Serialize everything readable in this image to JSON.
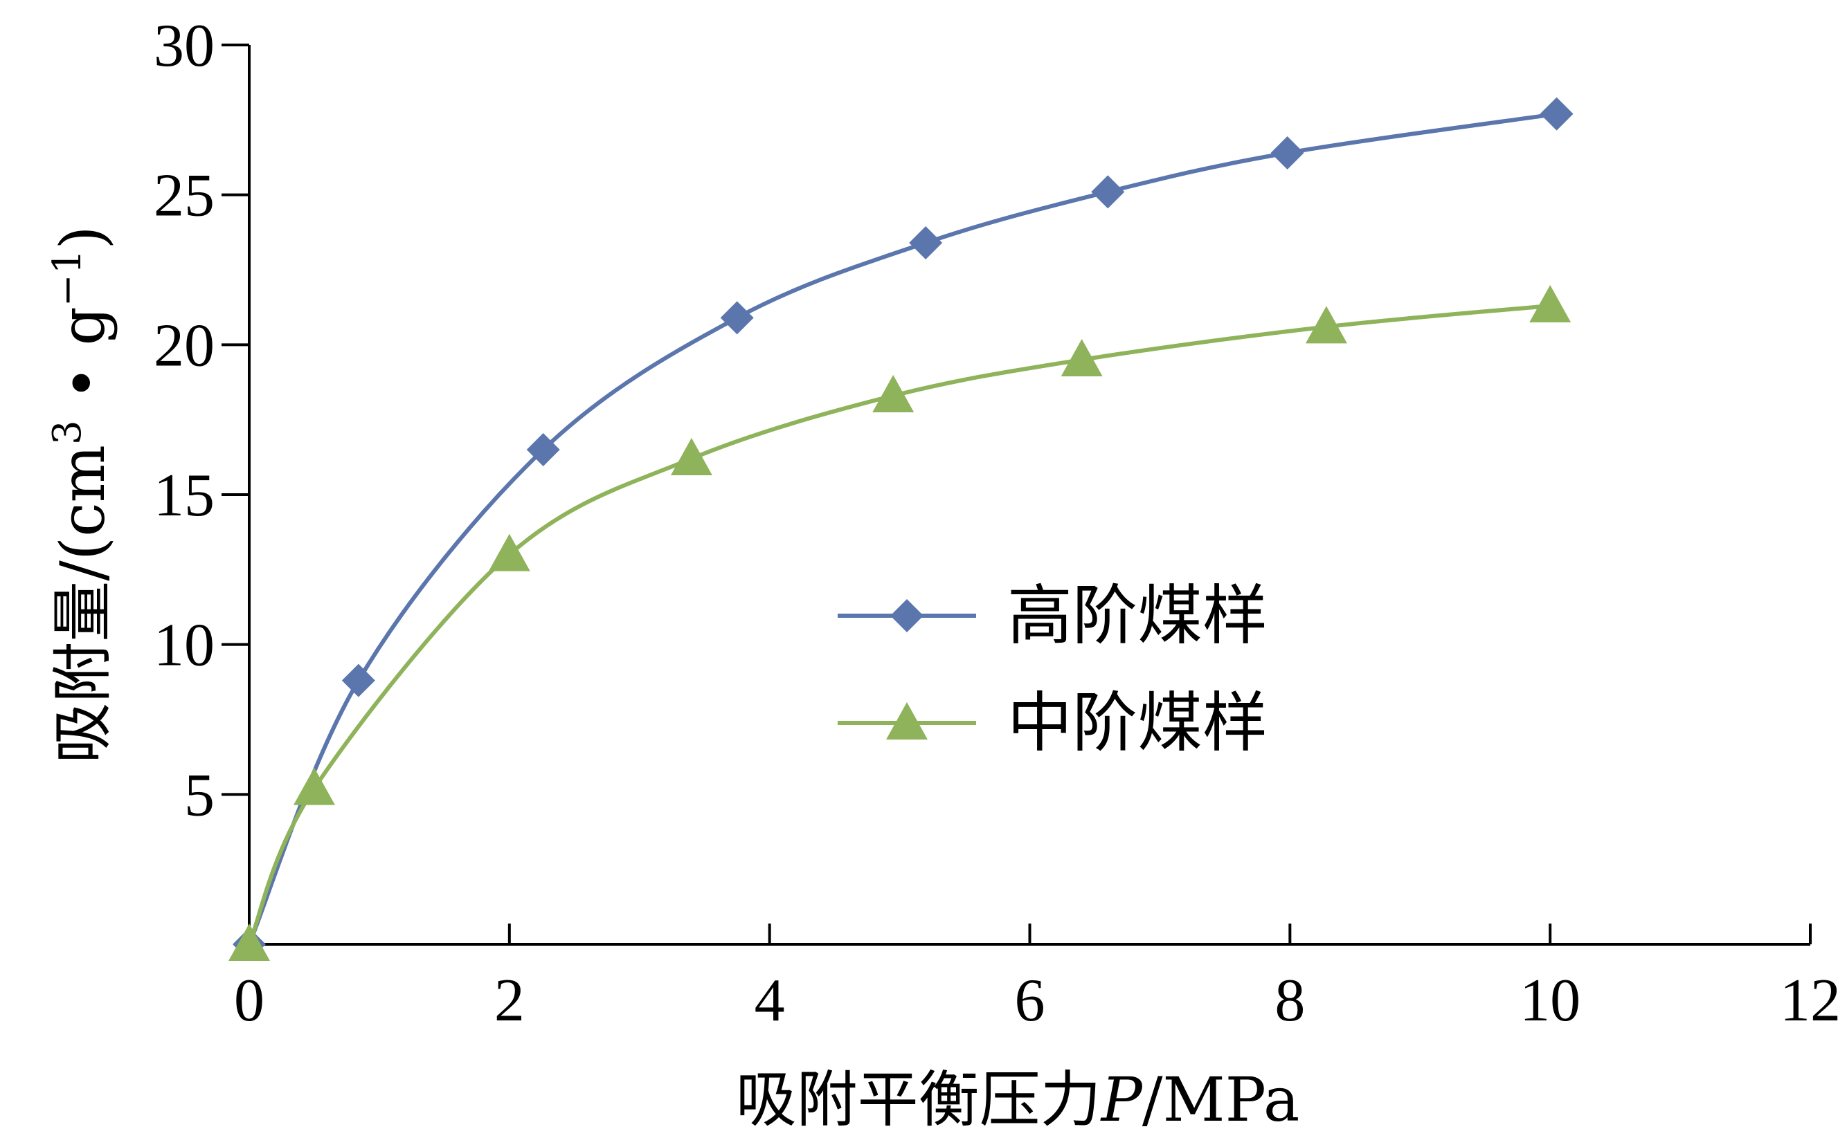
{
  "chart_data": {
    "type": "line",
    "title": "",
    "xlabel": "吸附平衡压力P/MPa",
    "xlabel_parts": {
      "prefix": "吸附平衡压力",
      "italic": "P",
      "suffix": "/MPa"
    },
    "ylabel": "吸附量/(cm3 • g-1)",
    "ylabel_parts": {
      "prefix": "吸附量/(cm",
      "sup1": "3",
      "mid": " • g",
      "sup2": "−1",
      "suffix": ")"
    },
    "xlim": [
      0,
      12
    ],
    "ylim": [
      0,
      30
    ],
    "x_ticks": [
      0,
      2,
      4,
      6,
      8,
      10,
      12
    ],
    "x_tick_labels": [
      "0",
      "2",
      "4",
      "6",
      "8",
      "10",
      "12"
    ],
    "y_ticks": [
      5,
      10,
      15,
      20,
      25,
      30
    ],
    "y_tick_labels": [
      "5",
      "10",
      "15",
      "20",
      "25",
      "30"
    ],
    "grid": false,
    "legend_position": "center-right",
    "series": [
      {
        "name": "高阶煤样",
        "color": "#5b75ad",
        "marker": "diamond",
        "x": [
          0,
          0.84,
          2.26,
          3.75,
          5.2,
          6.6,
          7.98,
          10.05
        ],
        "y": [
          0,
          8.8,
          16.5,
          20.9,
          23.4,
          25.1,
          26.4,
          27.7
        ]
      },
      {
        "name": "中阶煤样",
        "color": "#8fb35a",
        "marker": "triangle",
        "x": [
          0,
          0.5,
          2.0,
          3.4,
          4.95,
          6.4,
          8.28,
          10.0
        ],
        "y": [
          0,
          5.2,
          13.0,
          16.2,
          18.3,
          19.5,
          20.6,
          21.3
        ]
      }
    ]
  }
}
